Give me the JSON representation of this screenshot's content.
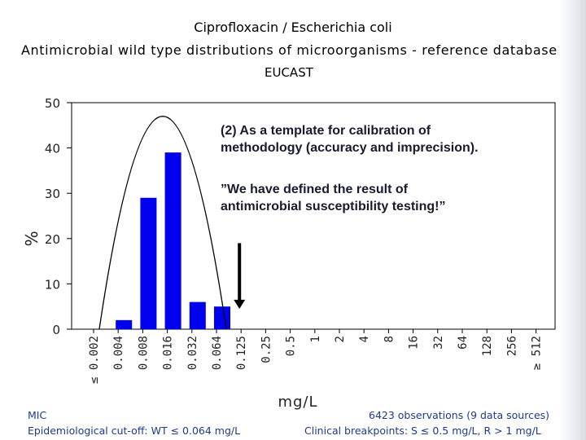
{
  "header": {
    "title_line1": "Ciprofloxacin / Escherichia coli",
    "title_line2": "Antimicrobial wild type distributions of microorganisms - reference database",
    "title_line3": "EUCAST"
  },
  "annotations": {
    "block1_line1": "(2) As a template for calibration of",
    "block1_line2": "methodology (accuracy and imprecision).",
    "block2_line1": "”We have defined the result of",
    "block2_line2": "antimicrobial susceptibility testing!”"
  },
  "footer": {
    "mic_label": "MIC",
    "ecoff": "Epidemiological cut-off: WT ≤ 0.064 mg/L",
    "observations": "6423 observations (9 data sources)",
    "breakpoints": "Clinical breakpoints: S ≤ 0.5 mg/L, R > 1 mg/L"
  },
  "colors": {
    "bar": "#0000ee",
    "axis": "#000000",
    "text": "#1f3a8a"
  },
  "chart_data": {
    "type": "bar",
    "categories": [
      "≤ 0.002",
      "0.004",
      "0.008",
      "0.016",
      "0.032",
      "0.064",
      "0.125",
      "0.25",
      "0.5",
      "1",
      "2",
      "4",
      "8",
      "16",
      "32",
      "64",
      "128",
      "256",
      "≥ 512"
    ],
    "values": [
      0,
      2,
      29,
      39,
      6,
      5,
      0,
      0,
      0,
      0,
      0,
      0,
      0,
      0,
      0,
      0,
      0,
      0,
      0
    ],
    "ylim": [
      0,
      50
    ],
    "yticks": [
      0,
      10,
      20,
      30,
      40,
      50
    ],
    "ylabel": "%",
    "xlabel": "mg/L",
    "grid": false,
    "wild_type_curve_peak": 47,
    "ecoff_arrow_value": "0.064"
  }
}
